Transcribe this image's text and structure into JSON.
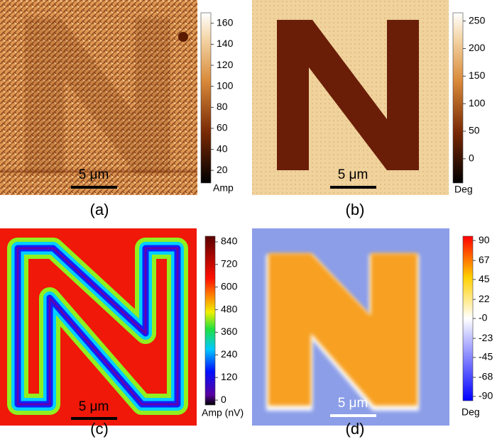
{
  "panels": [
    {
      "label": "(a)",
      "scale_bar": "5 μm",
      "colorbar": {
        "unit": "Amp",
        "lim": [
          8,
          170
        ],
        "ticks": [
          160,
          140,
          120,
          100,
          80,
          60,
          40,
          20
        ]
      }
    },
    {
      "label": "(b)",
      "scale_bar": "5 μm",
      "colorbar": {
        "unit": "Deg",
        "lim": [
          -44,
          265
        ],
        "ticks": [
          250,
          200,
          150,
          100,
          50,
          0
        ]
      }
    },
    {
      "label": "(c)",
      "scale_bar": "5 μm",
      "colorbar": {
        "unit": "Amp (nV)",
        "lim": [
          -26,
          870
        ],
        "ticks": [
          840,
          720,
          600,
          480,
          360,
          240,
          120,
          0
        ]
      }
    },
    {
      "label": "(d)",
      "scale_bar": "5 μm",
      "colorbar": {
        "unit": "Deg",
        "lim": [
          -95,
          95
        ],
        "ticks": [
          90,
          67,
          45,
          22,
          {
            "value": 0,
            "label": "-0"
          },
          -23,
          -45,
          -68,
          -90
        ]
      }
    }
  ]
}
